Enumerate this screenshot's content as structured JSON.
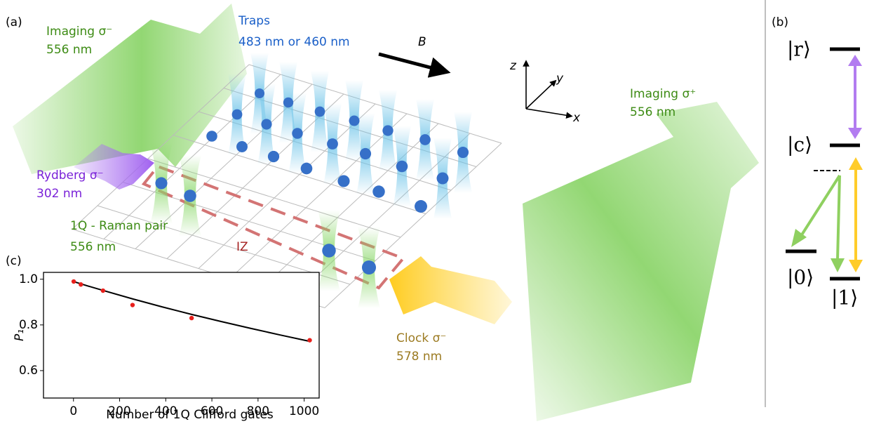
{
  "panel_labels": [
    "(a)",
    "(b)",
    "(c)"
  ],
  "beams": {
    "imaging_minus": {
      "name": "Imaging σ⁻",
      "wavelength": "556 nm"
    },
    "traps": {
      "name": "Traps",
      "wavelength": "483 nm or 460 nm"
    },
    "imaging_plus": {
      "name": "Imaging σ⁺",
      "wavelength": "556 nm"
    },
    "rydberg": {
      "name": "Rydberg σ⁻",
      "wavelength": "302 nm"
    },
    "raman": {
      "name": "1Q - Raman pair",
      "wavelength": "556 nm"
    },
    "clock": {
      "name": "Clock σ⁻",
      "wavelength": "578 nm"
    }
  },
  "field_label": "B",
  "axis_labels": {
    "x": "x",
    "y": "y",
    "z": "z"
  },
  "zone_label": "IZ",
  "levels": {
    "r": "|r⟩",
    "c": "|c⟩",
    "zero": "|0⟩",
    "one": "|1⟩"
  },
  "chart_data": {
    "type": "scatter",
    "xlabel": "Number of 1Q Clifford gates",
    "ylabel": "P₁",
    "x": [
      1,
      32,
      128,
      256,
      512,
      1024
    ],
    "values": [
      0.99,
      0.977,
      0.95,
      0.887,
      0.83,
      0.733
    ],
    "color": "#e8201c",
    "fit": {
      "x": [
        0,
        64,
        128,
        256,
        384,
        512,
        640,
        768,
        896,
        1024
      ],
      "values": [
        0.99,
        0.97,
        0.951,
        0.914,
        0.879,
        0.846,
        0.815,
        0.785,
        0.756,
        0.728
      ],
      "color": "#000000"
    },
    "xlim": [
      -130,
      1065
    ],
    "ylim": [
      0.48,
      1.03
    ],
    "xticks": [
      0,
      200,
      400,
      600,
      800,
      1000
    ],
    "yticks": [
      0.6,
      0.8,
      {
        "value": 1,
        "label": "1.0"
      }
    ]
  }
}
